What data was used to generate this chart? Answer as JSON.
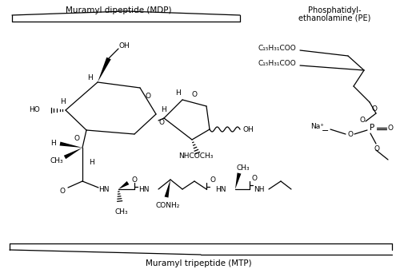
{
  "bg_color": "#ffffff",
  "label_mdp": "Muramyl dipeptide (MDP)",
  "label_mtp": "Muramyl tripeptide (MTP)",
  "label_pe_1": "Phosphatidyl-",
  "label_pe_2": "ethanolamine (PE)",
  "fig_w": 5.0,
  "fig_h": 3.47,
  "dpi": 100
}
